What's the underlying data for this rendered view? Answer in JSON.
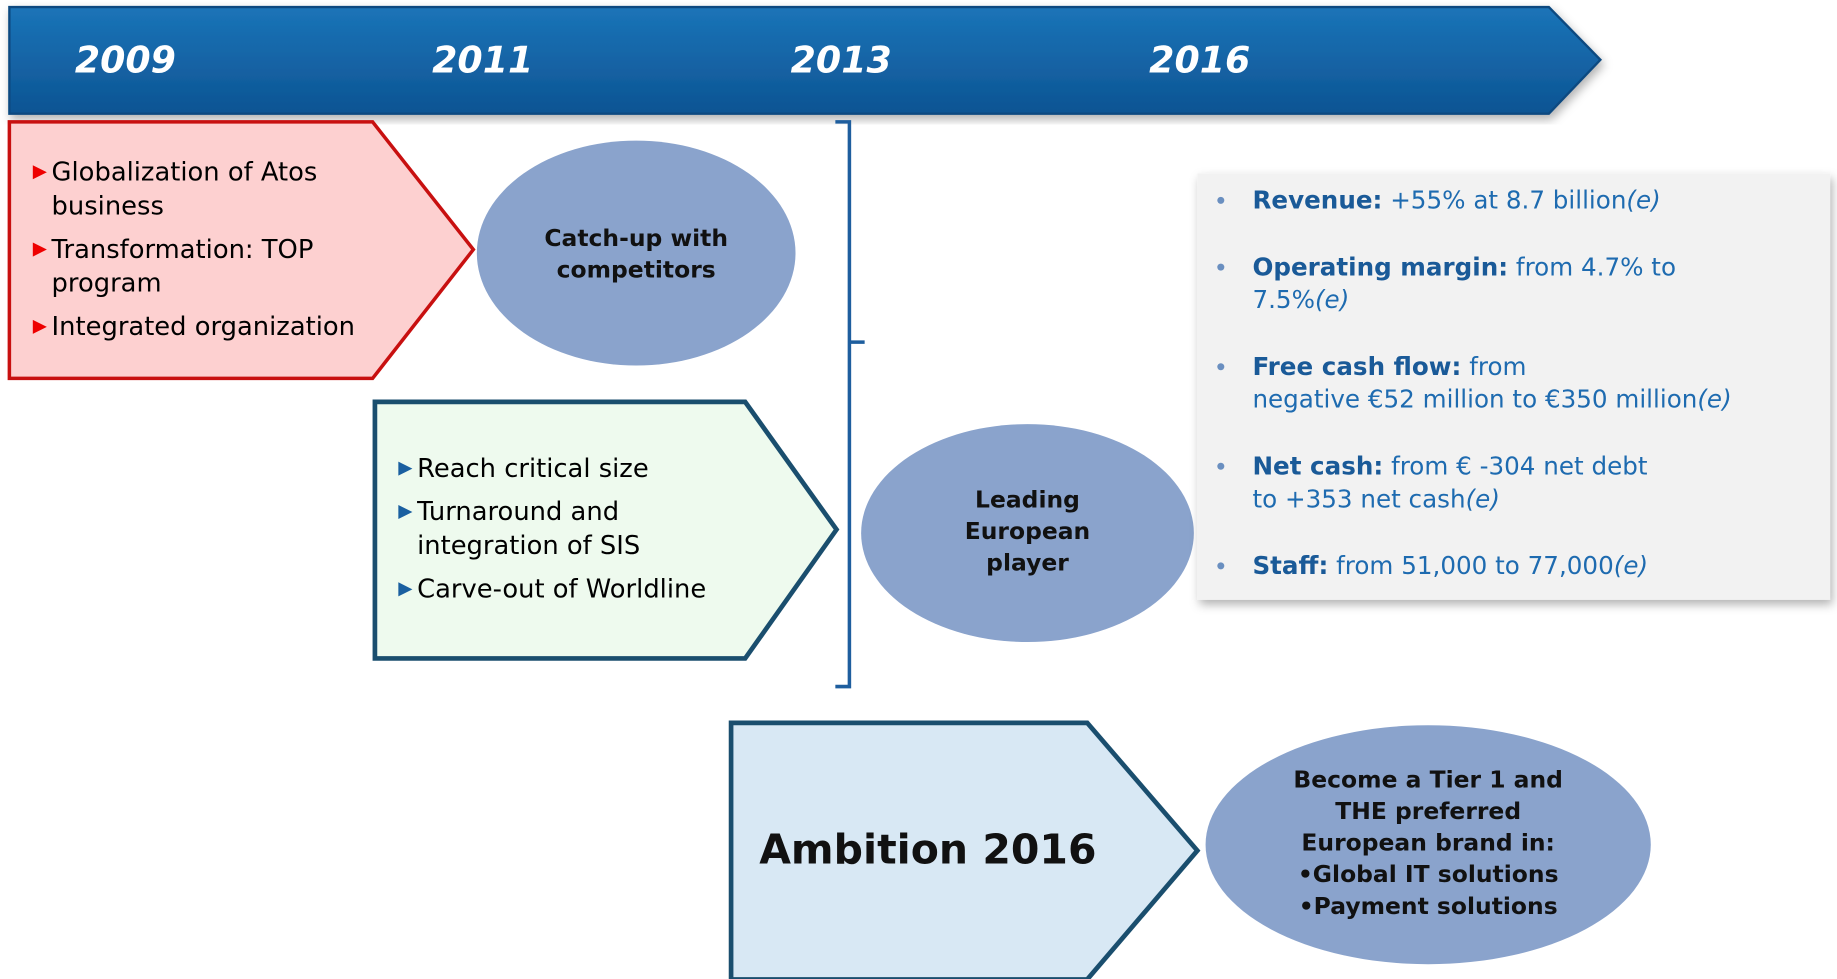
{
  "timeline": {
    "years": [
      "2009",
      "2011",
      "2013",
      "2016"
    ]
  },
  "phase1": {
    "items": [
      [
        "Globalization of Atos",
        "business"
      ],
      [
        "Transformation: TOP",
        "program"
      ],
      [
        "Integrated organization"
      ]
    ],
    "outcome": [
      "Catch-up with",
      "competitors"
    ]
  },
  "phase2": {
    "items": [
      [
        "Reach critical size"
      ],
      [
        "Turnaround and",
        "integration of SIS"
      ],
      [
        "Carve-out of Worldline"
      ]
    ],
    "outcome": [
      "Leading",
      "European",
      "player"
    ]
  },
  "results": [
    {
      "label": "Revenue:",
      "lines": [
        "+55% at 8.7 billion"
      ],
      "note": "(e)"
    },
    {
      "label": "Operating margin:",
      "lines": [
        "from 4.7% to",
        "7.5%"
      ],
      "note": "(e)"
    },
    {
      "label": "Free cash flow:",
      "lines": [
        "from",
        "negative €52 million to €350 million"
      ],
      "note": "(e)"
    },
    {
      "label": "Net cash:",
      "lines": [
        "from € -304 net debt",
        "to +353 net cash"
      ],
      "note": "(e)"
    },
    {
      "label": "Staff:",
      "lines": [
        "from 51,000 to 77,000"
      ],
      "note": "(e)"
    }
  ],
  "ambition": {
    "title": "Ambition 2016",
    "outcome": [
      "Become a Tier 1 and",
      "THE preferred",
      "European brand in:",
      "•Global IT solutions",
      "•Payment solutions"
    ]
  }
}
